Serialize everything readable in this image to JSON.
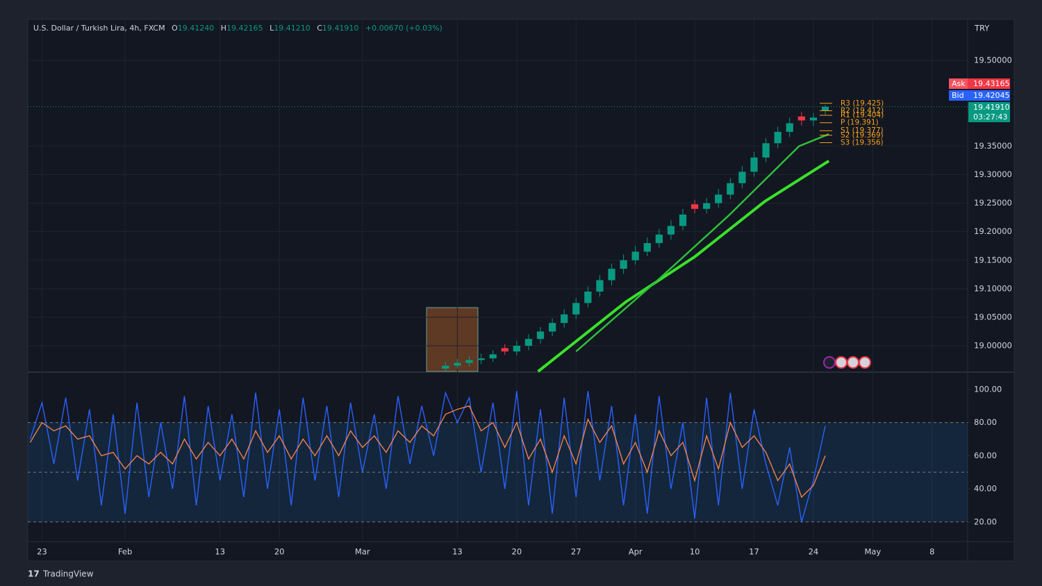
{
  "legend": {
    "symbol": "U.S. Dollar / Turkish Lira, 4h, FXCM",
    "o_label": "O",
    "open": "19.41240",
    "h_label": "H",
    "high": "19.42165",
    "l_label": "L",
    "low": "19.41210",
    "c_label": "C",
    "close": "19.41910",
    "change": "+0.00670 (+0.03%)"
  },
  "currency": "TRY",
  "price_labels": {
    "ask_label": "Ask",
    "ask": "19.43165",
    "bid_label": "Bid",
    "bid": "19.42045",
    "last": "19.41910",
    "countdown": "03:27:43"
  },
  "brand": "TradingView",
  "chart_data": [
    {
      "type": "candlestick",
      "x": [
        34,
        35,
        36,
        37,
        38,
        39,
        40,
        41,
        42,
        43,
        44,
        45,
        46,
        47,
        48,
        49,
        50,
        51,
        52,
        53,
        54,
        55,
        56,
        57,
        58,
        59,
        60,
        61,
        62,
        63,
        64,
        65,
        66
      ],
      "open": [
        18.96,
        18.965,
        18.97,
        18.975,
        18.978,
        18.996,
        18.99,
        19.0,
        19.012,
        19.025,
        19.04,
        19.055,
        19.075,
        19.095,
        19.115,
        19.135,
        19.15,
        19.165,
        19.18,
        19.195,
        19.21,
        19.248,
        19.24,
        19.25,
        19.265,
        19.285,
        19.305,
        19.33,
        19.355,
        19.375,
        19.402,
        19.395,
        19.412
      ],
      "high": [
        18.972,
        18.977,
        18.982,
        18.986,
        18.992,
        19.003,
        19.008,
        19.02,
        19.033,
        19.048,
        19.064,
        19.084,
        19.104,
        19.124,
        19.144,
        19.16,
        19.175,
        19.19,
        19.205,
        19.22,
        19.24,
        19.256,
        19.259,
        19.275,
        19.294,
        19.315,
        19.34,
        19.364,
        19.384,
        19.4,
        19.41,
        19.408,
        19.422
      ],
      "low": [
        18.956,
        18.96,
        18.964,
        18.968,
        18.972,
        18.984,
        18.983,
        18.992,
        19.004,
        19.017,
        19.032,
        19.047,
        19.067,
        19.086,
        19.106,
        19.126,
        19.142,
        19.157,
        19.172,
        19.186,
        19.202,
        19.232,
        19.232,
        19.242,
        19.257,
        19.276,
        19.296,
        19.322,
        19.346,
        19.366,
        19.386,
        19.385,
        19.405
      ],
      "close": [
        18.965,
        18.97,
        18.975,
        18.978,
        18.985,
        18.99,
        19.0,
        19.012,
        19.025,
        19.04,
        19.055,
        19.075,
        19.095,
        19.115,
        19.135,
        19.15,
        19.165,
        19.18,
        19.195,
        19.21,
        19.23,
        19.24,
        19.25,
        19.265,
        19.285,
        19.305,
        19.33,
        19.355,
        19.375,
        19.39,
        19.395,
        19.4,
        19.419
      ],
      "up_color": "#089981",
      "down_color": "#f23645",
      "lines": [
        {
          "color": "#39e12a",
          "width": 4,
          "x": [
            41.8,
            49.2,
            55,
            60.9,
            66.3
          ],
          "values": [
            18.955,
            19.077,
            19.156,
            19.253,
            19.324
          ]
        },
        {
          "color": "#2fbf3a",
          "width": 2.5,
          "x": [
            45,
            52.1,
            57.9,
            63.8,
            66.3
          ],
          "values": [
            18.99,
            19.119,
            19.229,
            19.35,
            19.371
          ]
        }
      ],
      "pivots": [
        {
          "label": "R3 (19.425)",
          "value": 19.425
        },
        {
          "label": "R2 (19.412)",
          "value": 19.412
        },
        {
          "label": "R1 (19.404)",
          "value": 19.404
        },
        {
          "label": "P (19.391)",
          "value": 19.391
        },
        {
          "label": "S1 (19.377)",
          "value": 19.377
        },
        {
          "label": "S2 (19.369)",
          "value": 19.369
        },
        {
          "label": "S3 (19.356)",
          "value": 19.356
        }
      ],
      "pivot_color": "#f7a21b",
      "last_price": 19.4191,
      "xlim": [
        -1.2,
        78
      ],
      "ylim": [
        18.955,
        19.572
      ],
      "yticks": [
        {
          "value": 19.0,
          "label": "19.00000"
        },
        {
          "value": 19.05,
          "label": "19.05000"
        },
        {
          "value": 19.1,
          "label": "19.10000"
        },
        {
          "value": 19.15,
          "label": "19.15000"
        },
        {
          "value": 19.2,
          "label": "19.20000"
        },
        {
          "value": 19.25,
          "label": "19.25000"
        },
        {
          "value": 19.3,
          "label": "19.30000"
        },
        {
          "value": 19.35,
          "label": "19.35000"
        },
        {
          "value": 19.5,
          "label": "19.50000"
        }
      ],
      "xticks": [
        {
          "value": 0,
          "label": "23"
        },
        {
          "value": 7,
          "label": "Feb"
        },
        {
          "value": 15,
          "label": "13"
        },
        {
          "value": 20,
          "label": "20"
        },
        {
          "value": 27,
          "label": "Mar"
        },
        {
          "value": 35,
          "label": "13"
        },
        {
          "value": 40,
          "label": "20"
        },
        {
          "value": 45,
          "label": "27"
        },
        {
          "value": 50,
          "label": "Apr"
        },
        {
          "value": 55,
          "label": "10"
        },
        {
          "value": 60,
          "label": "17"
        },
        {
          "value": 65,
          "label": "24"
        },
        {
          "value": 70,
          "label": "May"
        },
        {
          "value": 75,
          "label": "8"
        }
      ],
      "grid": true
    },
    {
      "type": "line",
      "x": [
        -1,
        0,
        1,
        2,
        3,
        4,
        5,
        6,
        7,
        8,
        9,
        10,
        11,
        12,
        13,
        14,
        15,
        16,
        17,
        18,
        19,
        20,
        21,
        22,
        23,
        24,
        25,
        26,
        27,
        28,
        29,
        30,
        31,
        32,
        33,
        34,
        35,
        36,
        37,
        38,
        39,
        40,
        41,
        42,
        43,
        44,
        45,
        46,
        47,
        48,
        49,
        50,
        51,
        52,
        53,
        54,
        55,
        56,
        57,
        58,
        59,
        60,
        61,
        62,
        63,
        64,
        65,
        66
      ],
      "series": [
        {
          "color": "#2962ff",
          "values": [
            70,
            92,
            55,
            95,
            45,
            88,
            30,
            85,
            25,
            92,
            35,
            80,
            40,
            96,
            30,
            90,
            45,
            85,
            35,
            98,
            40,
            88,
            30,
            95,
            45,
            90,
            35,
            92,
            50,
            85,
            40,
            96,
            55,
            90,
            60,
            98,
            80,
            95,
            50,
            92,
            40,
            99,
            30,
            88,
            25,
            95,
            35,
            99,
            45,
            90,
            30,
            85,
            25,
            96,
            40,
            80,
            22,
            95,
            30,
            98,
            40,
            88,
            55,
            30,
            65,
            20,
            45,
            78
          ]
        },
        {
          "color": "#f2804a",
          "values": [
            68,
            80,
            75,
            78,
            70,
            72,
            60,
            62,
            52,
            60,
            55,
            62,
            55,
            70,
            58,
            68,
            60,
            70,
            58,
            75,
            62,
            72,
            58,
            70,
            60,
            72,
            60,
            75,
            65,
            72,
            62,
            75,
            68,
            78,
            72,
            85,
            88,
            90,
            75,
            80,
            65,
            80,
            58,
            70,
            50,
            72,
            55,
            82,
            68,
            78,
            55,
            68,
            50,
            75,
            60,
            68,
            45,
            72,
            52,
            80,
            65,
            72,
            62,
            45,
            55,
            35,
            42,
            60
          ]
        }
      ],
      "bands": {
        "upper": 80,
        "middle": 50,
        "lower": 20,
        "fill": "rgba(33,150,243,0.12)"
      },
      "xlim": [
        -1.2,
        78
      ],
      "ylim": [
        9,
        110
      ],
      "yticks": [
        {
          "value": 20,
          "label": "20.00"
        },
        {
          "value": 40,
          "label": "40.00"
        },
        {
          "value": 60,
          "label": "60.00"
        },
        {
          "value": 80,
          "label": "80.00"
        },
        {
          "value": 100,
          "label": "100.00"
        }
      ],
      "grid": true
    }
  ]
}
